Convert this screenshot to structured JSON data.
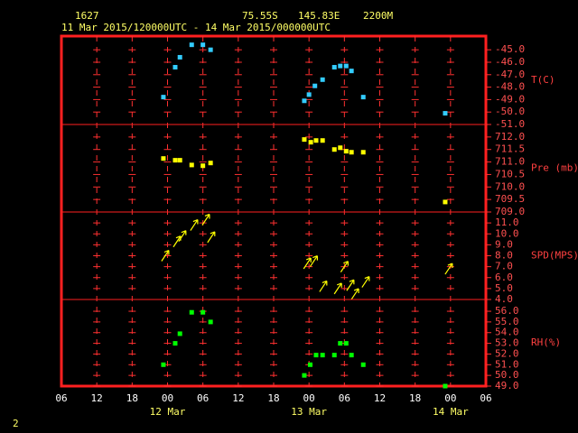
{
  "header": {
    "station": "1627",
    "lat": "75.55S",
    "lon": "145.83E",
    "elev": "2200M",
    "period": "11 Mar 2015/120000UTC - 14 Mar 2015/000000UTC",
    "page": "2"
  },
  "x_axis": {
    "xlim": [
      6,
      78
    ],
    "xticks": [
      {
        "value": 6,
        "label": "06"
      },
      12,
      18,
      {
        "value": 24,
        "label": "00"
      },
      {
        "value": 30,
        "label": "06"
      },
      {
        "value": 36,
        "label": "12"
      },
      {
        "value": 42,
        "label": "18"
      },
      {
        "value": 48,
        "label": "00"
      },
      {
        "value": 54,
        "label": "06"
      },
      {
        "value": 60,
        "label": "12"
      },
      {
        "value": 66,
        "label": "18"
      },
      {
        "value": 72,
        "label": "00"
      },
      {
        "value": 78,
        "label": "06"
      }
    ],
    "dates": [
      {
        "value": 24,
        "label": "12 Mar"
      },
      {
        "value": 48,
        "label": "13 Mar"
      },
      {
        "value": 72,
        "label": "14 Mar"
      }
    ]
  },
  "chart_data": [
    {
      "type": "scatter",
      "name": "T(C)",
      "color": "#33ccff",
      "x": [
        23.3,
        25.3,
        26.1,
        28.1,
        30.0,
        31.3,
        47.2,
        48.0,
        49.0,
        50.3,
        52.3,
        53.3,
        54.3,
        55.2,
        57.2,
        71.1
      ],
      "values": [
        -48.8,
        -46.4,
        -45.6,
        -44.6,
        -44.6,
        -45.0,
        -49.1,
        -48.6,
        -47.9,
        -47.4,
        -46.4,
        -46.3,
        -46.3,
        -46.7,
        -48.8,
        -50.1
      ],
      "ylim": [
        -51,
        -43.9
      ],
      "yticks": [
        {
          "value": -45,
          "label": "-45.0"
        },
        {
          "value": -46,
          "label": "-46.0"
        },
        {
          "value": -47,
          "label": "-47.0"
        },
        {
          "value": -48,
          "label": "-48.0"
        },
        {
          "value": -49,
          "label": "-49.0"
        },
        {
          "value": -50,
          "label": "-50.0"
        },
        {
          "value": -51,
          "label": "-51.0"
        }
      ]
    },
    {
      "type": "scatter",
      "name": "Pre (mb)",
      "color": "#ffff00",
      "x": [
        23.3,
        25.3,
        26.1,
        28.1,
        30.0,
        31.3,
        47.2,
        48.3,
        49.2,
        50.3,
        52.3,
        53.3,
        54.3,
        55.2,
        57.2,
        71.1
      ],
      "values": [
        711.14,
        711.07,
        711.07,
        710.88,
        710.85,
        710.96,
        711.9,
        711.79,
        711.86,
        711.86,
        711.5,
        711.57,
        711.43,
        711.39,
        711.39,
        709.4
      ],
      "ylim": [
        709,
        712.5
      ],
      "yticks": [
        {
          "value": 712,
          "label": "712.0"
        },
        711.5,
        {
          "value": 711,
          "label": "711.0"
        },
        710.5,
        {
          "value": 710,
          "label": "710.0"
        },
        709.5,
        {
          "value": 709,
          "label": "709.0"
        }
      ]
    },
    {
      "type": "wind",
      "name": "SPD(MPS)",
      "color": "#ffff00",
      "x": [
        23.6,
        25.6,
        26.5,
        28.5,
        30.5,
        31.4,
        47.7,
        48.8,
        50.4,
        52.9,
        54.0,
        55.0,
        55.8,
        57.6,
        71.7
      ],
      "values": [
        8.0,
        9.3,
        9.8,
        10.8,
        11.3,
        9.7,
        7.3,
        7.5,
        5.2,
        5.0,
        7.0,
        5.3,
        4.5,
        5.6,
        6.8
      ],
      "ylim": [
        4,
        12
      ],
      "yticks": [
        {
          "value": 11,
          "label": "11.0"
        },
        {
          "value": 10,
          "label": "10.0"
        },
        {
          "value": 9,
          "label": "9.0"
        },
        {
          "value": 8,
          "label": "8.0"
        },
        {
          "value": 7,
          "label": "7.0"
        },
        {
          "value": 6,
          "label": "6.0"
        },
        {
          "value": 5,
          "label": "5.0"
        },
        {
          "value": 4,
          "label": "4.0"
        }
      ]
    },
    {
      "type": "scatter",
      "name": "RH(%)",
      "color": "#00ff00",
      "x": [
        23.3,
        25.3,
        26.1,
        28.1,
        30.0,
        31.3,
        47.2,
        48.2,
        49.2,
        50.3,
        52.3,
        53.3,
        54.3,
        55.2,
        57.2,
        71.1
      ],
      "values": [
        51.0,
        53.0,
        53.9,
        55.9,
        55.9,
        55.0,
        50.0,
        51.0,
        51.9,
        51.9,
        51.9,
        53.0,
        53.0,
        51.9,
        51.0,
        49.0
      ],
      "ylim": [
        49,
        57.1
      ],
      "yticks": [
        {
          "value": 56,
          "label": "56.0"
        },
        {
          "value": 55,
          "label": "55.0"
        },
        {
          "value": 54,
          "label": "54.0"
        },
        {
          "value": 53,
          "label": "53.0"
        },
        {
          "value": 52,
          "label": "52.0"
        },
        {
          "value": 51,
          "label": "51.0"
        },
        {
          "value": 50,
          "label": "50.0"
        },
        {
          "value": 49,
          "label": "49.0"
        }
      ]
    }
  ]
}
